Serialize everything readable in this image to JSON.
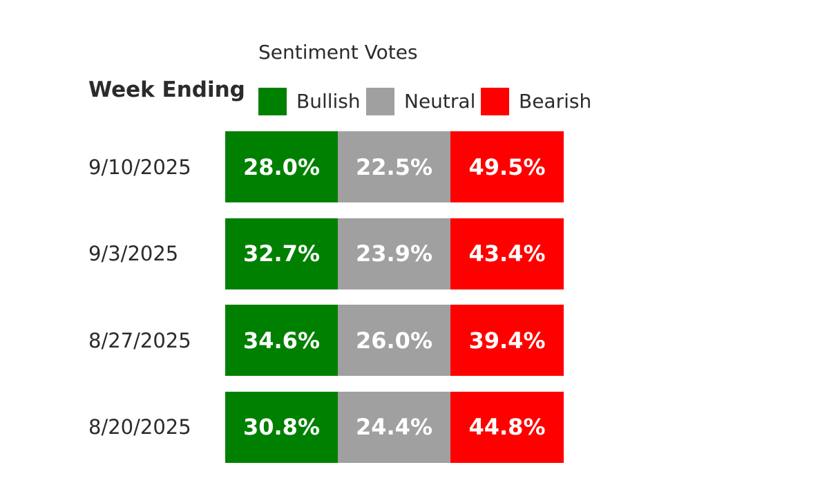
{
  "chart_data": {
    "type": "table",
    "title": "",
    "subtitle": "Sentiment Votes",
    "row_header": "Week Ending",
    "legend": [
      {
        "name": "Bullish",
        "color": "#008000"
      },
      {
        "name": "Neutral",
        "color": "#a0a0a0"
      },
      {
        "name": "Bearish",
        "color": "#ff0000"
      }
    ],
    "categories": [
      "9/10/2025",
      "9/3/2025",
      "8/27/2025",
      "8/20/2025"
    ],
    "series": [
      {
        "name": "Bullish",
        "values": [
          28.0,
          32.7,
          34.6,
          30.8
        ],
        "labels": [
          "28.0%",
          "32.7%",
          "34.6%",
          "30.8%"
        ]
      },
      {
        "name": "Neutral",
        "values": [
          22.5,
          23.9,
          26.0,
          24.4
        ],
        "labels": [
          "22.5%",
          "23.9%",
          "26.0%",
          "24.4%"
        ]
      },
      {
        "name": "Bearish",
        "values": [
          49.5,
          43.4,
          39.4,
          44.8
        ],
        "labels": [
          "49.5%",
          "43.4%",
          "39.4%",
          "44.8%"
        ]
      }
    ]
  }
}
